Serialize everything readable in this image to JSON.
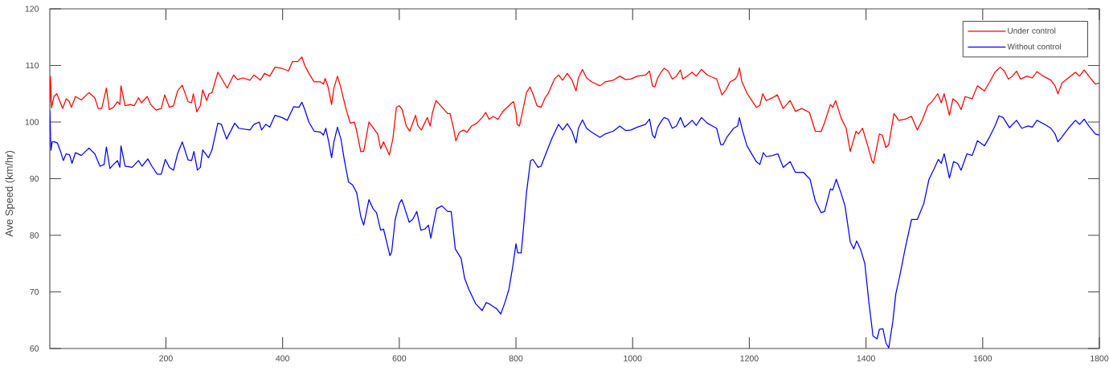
{
  "chart_data": {
    "type": "line",
    "ylabel": "Ave Speed (km/hr)",
    "xlim": [
      1,
      1800
    ],
    "ylim": [
      60,
      120
    ],
    "xticks": [
      200,
      400,
      600,
      800,
      1000,
      1200,
      1400,
      1600,
      1800
    ],
    "yticks": [
      60,
      70,
      80,
      90,
      100,
      110,
      120
    ],
    "legend": "top right",
    "marker": "none",
    "line_style": "solid",
    "series": [
      {
        "name": "Under control",
        "color": "#ff0000",
        "x": [
          1,
          2,
          4,
          8,
          13,
          23,
          29,
          34,
          38,
          45,
          55,
          68,
          78,
          84,
          90,
          98,
          103,
          110,
          117,
          121,
          123,
          130,
          139,
          146,
          153,
          158,
          168,
          174,
          183,
          192,
          198,
          206,
          213,
          220,
          228,
          238,
          244,
          247,
          253,
          259,
          263,
          270,
          274,
          279,
          289,
          295,
          305,
          316,
          323,
          332,
          344,
          351,
          362,
          369,
          378,
          387,
          399,
          410,
          417,
          426,
          433,
          438,
          445,
          454,
          465,
          470,
          473,
          478,
          484,
          488,
          494,
          499,
          509,
          516,
          523,
          527,
          534,
          539,
          548,
          556,
          563,
          568,
          573,
          583,
          589,
          595,
          600,
          605,
          612,
          618,
          628,
          632,
          638,
          648,
          653,
          657,
          663,
          671,
          683,
          687,
          693,
          697,
          703,
          710,
          716,
          724,
          733,
          742,
          748,
          754,
          761,
          769,
          777,
          788,
          793,
          796,
          800,
          802,
          806,
          811,
          818,
          824,
          829,
          836,
          843,
          850,
          855,
          866,
          873,
          880,
          888,
          896,
          903,
          907,
          914,
          921,
          930,
          944,
          953,
          967,
          978,
          988,
          997,
          1008,
          1022,
          1029,
          1034,
          1038,
          1043,
          1050,
          1054,
          1061,
          1068,
          1075,
          1082,
          1086,
          1093,
          1102,
          1109,
          1118,
          1128,
          1137,
          1144,
          1153,
          1160,
          1167,
          1176,
          1180,
          1183,
          1187,
          1196,
          1212,
          1218,
          1223,
          1229,
          1240,
          1248,
          1258,
          1270,
          1279,
          1290,
          1303,
          1313,
          1323,
          1329,
          1339,
          1343,
          1348,
          1357,
          1366,
          1373,
          1383,
          1387,
          1394,
          1403,
          1410,
          1413,
          1423,
          1428,
          1434,
          1439,
          1448,
          1456,
          1467,
          1478,
          1488,
          1497,
          1506,
          1513,
          1523,
          1529,
          1534,
          1543,
          1549,
          1557,
          1563,
          1570,
          1582,
          1591,
          1603,
          1612,
          1621,
          1630,
          1637,
          1644,
          1651,
          1658,
          1665,
          1676,
          1685,
          1693,
          1704,
          1717,
          1724,
          1729,
          1736,
          1747,
          1759,
          1766,
          1774,
          1782,
          1793,
          1800
        ],
        "values": [
          103.5,
          108.1,
          102.5,
          104.5,
          105.0,
          102.4,
          104.1,
          103.7,
          102.6,
          104.5,
          103.9,
          105.2,
          104.3,
          102.4,
          102.4,
          106.0,
          102.2,
          102.6,
          103.6,
          103.1,
          106.4,
          102.9,
          103.1,
          102.9,
          104.3,
          103.4,
          104.5,
          103.1,
          102.1,
          102.4,
          104.8,
          102.6,
          102.9,
          105.5,
          106.5,
          103.6,
          103.4,
          105.0,
          101.8,
          102.9,
          105.7,
          103.8,
          105.0,
          105.2,
          108.8,
          107.8,
          106.0,
          108.3,
          107.5,
          107.8,
          107.4,
          108.3,
          107.4,
          108.6,
          108.1,
          109.7,
          109.5,
          109.0,
          110.7,
          110.7,
          111.5,
          110.0,
          108.6,
          107.1,
          107.1,
          106.7,
          107.7,
          106.2,
          103.1,
          106.0,
          108.1,
          106.4,
          102.2,
          99.8,
          100.0,
          98.4,
          94.8,
          94.8,
          100.0,
          98.9,
          97.9,
          95.3,
          96.5,
          94.2,
          97.0,
          102.6,
          102.9,
          102.2,
          99.3,
          98.4,
          101.2,
          99.3,
          98.6,
          100.8,
          99.3,
          101.7,
          103.8,
          102.9,
          101.5,
          101.5,
          98.9,
          96.7,
          98.2,
          98.6,
          98.2,
          99.3,
          99.8,
          100.8,
          101.7,
          100.5,
          101.0,
          100.5,
          101.8,
          102.9,
          103.4,
          103.6,
          101.7,
          99.6,
          99.3,
          101.7,
          105.2,
          106.2,
          105.0,
          102.9,
          102.6,
          104.3,
          105.0,
          107.6,
          108.3,
          107.4,
          108.6,
          107.4,
          105.5,
          107.8,
          109.3,
          107.8,
          107.1,
          106.4,
          107.1,
          107.4,
          108.1,
          107.5,
          107.6,
          108.1,
          108.3,
          109.0,
          106.4,
          106.2,
          107.8,
          109.0,
          109.5,
          109.0,
          107.6,
          108.1,
          109.2,
          107.6,
          108.1,
          108.8,
          108.1,
          109.3,
          108.3,
          107.9,
          107.6,
          104.8,
          105.7,
          107.1,
          107.6,
          108.3,
          109.6,
          107.2,
          105.1,
          102.6,
          102.9,
          105.0,
          103.8,
          104.3,
          104.8,
          102.4,
          103.8,
          101.9,
          102.4,
          101.7,
          98.4,
          98.3,
          99.9,
          103.1,
          102.6,
          103.8,
          100.8,
          98.9,
          94.8,
          98.4,
          97.9,
          98.9,
          95.8,
          93.2,
          92.7,
          97.9,
          97.7,
          95.5,
          96.0,
          101.5,
          100.3,
          100.5,
          101.0,
          98.6,
          100.5,
          102.9,
          103.6,
          105.0,
          103.4,
          105.0,
          101.2,
          104.1,
          103.4,
          102.2,
          104.5,
          104.1,
          106.4,
          105.5,
          107.1,
          108.8,
          109.7,
          109.0,
          107.6,
          108.1,
          109.0,
          107.6,
          108.1,
          107.8,
          108.9,
          108.1,
          107.4,
          106.4,
          105.0,
          106.9,
          107.8,
          108.8,
          108.1,
          109.2,
          108.1,
          106.7,
          106.9
        ]
      },
      {
        "name": "Without control",
        "color": "#0000ff",
        "x": [
          1,
          3,
          5,
          9,
          14,
          20,
          24,
          29,
          35,
          39,
          45,
          55,
          68,
          78,
          87,
          94,
          98,
          104,
          110,
          117,
          121,
          123,
          130,
          142,
          153,
          159,
          169,
          176,
          185,
          192,
          199,
          206,
          213,
          220,
          228,
          238,
          244,
          248,
          254,
          259,
          263,
          273,
          279,
          289,
          295,
          304,
          318,
          325,
          344,
          351,
          360,
          364,
          371,
          378,
          387,
          399,
          408,
          412,
          419,
          428,
          433,
          438,
          445,
          454,
          465,
          470,
          474,
          479,
          484,
          488,
          494,
          500,
          506,
          513,
          520,
          527,
          534,
          539,
          548,
          555,
          561,
          568,
          573,
          578,
          584,
          587,
          593,
          600,
          604,
          608,
          617,
          623,
          630,
          637,
          644,
          650,
          654,
          657,
          664,
          673,
          683,
          689,
          696,
          706,
          712,
          719,
          731,
          742,
          749,
          754,
          761,
          767,
          774,
          781,
          788,
          795,
          800,
          803,
          809,
          812,
          818,
          825,
          829,
          838,
          843,
          852,
          862,
          873,
          880,
          888,
          896,
          903,
          907,
          914,
          921,
          930,
          944,
          953,
          967,
          978,
          988,
          997,
          1008,
          1022,
          1029,
          1034,
          1038,
          1043,
          1050,
          1054,
          1061,
          1068,
          1075,
          1082,
          1089,
          1095,
          1102,
          1109,
          1118,
          1128,
          1137,
          1144,
          1151,
          1155,
          1162,
          1173,
          1180,
          1183,
          1188,
          1196,
          1212,
          1218,
          1224,
          1229,
          1240,
          1249,
          1258,
          1270,
          1279,
          1293,
          1304,
          1313,
          1323,
          1329,
          1339,
          1343,
          1349,
          1357,
          1364,
          1373,
          1379,
          1384,
          1391,
          1398,
          1405,
          1412,
          1419,
          1423,
          1429,
          1434,
          1439,
          1446,
          1451,
          1458,
          1467,
          1478,
          1488,
          1499,
          1508,
          1517,
          1524,
          1529,
          1534,
          1543,
          1550,
          1557,
          1563,
          1573,
          1582,
          1591,
          1603,
          1612,
          1621,
          1628,
          1635,
          1646,
          1658,
          1667,
          1678,
          1685,
          1693,
          1706,
          1717,
          1724,
          1729,
          1736,
          1747,
          1759,
          1766,
          1774,
          1782,
          1793,
          1800
        ],
        "values": [
          102.0,
          95.0,
          96.5,
          96.5,
          96.3,
          94.6,
          93.2,
          94.4,
          94.2,
          92.7,
          94.6,
          94.1,
          95.4,
          94.4,
          92.2,
          92.5,
          95.6,
          91.8,
          92.5,
          93.2,
          92.0,
          95.8,
          92.2,
          92.0,
          93.2,
          92.2,
          93.5,
          92.2,
          90.8,
          90.8,
          93.4,
          92.0,
          91.5,
          94.4,
          96.5,
          93.3,
          93.2,
          94.8,
          91.5,
          92.0,
          95.1,
          93.7,
          95.1,
          99.8,
          99.6,
          97.0,
          99.8,
          98.9,
          98.6,
          99.6,
          100.0,
          98.6,
          99.6,
          99.1,
          101.2,
          100.8,
          100.3,
          101.2,
          102.7,
          102.6,
          103.5,
          102.2,
          100.0,
          98.4,
          98.2,
          97.7,
          98.9,
          96.5,
          93.7,
          96.5,
          99.1,
          97.0,
          93.2,
          89.4,
          88.9,
          87.5,
          83.3,
          81.8,
          86.3,
          84.7,
          84.0,
          80.9,
          81.1,
          79.0,
          76.4,
          77.1,
          82.8,
          85.6,
          86.3,
          85.2,
          82.3,
          82.8,
          84.2,
          80.9,
          81.1,
          81.8,
          79.5,
          81.1,
          84.7,
          85.2,
          84.2,
          84.2,
          77.6,
          75.9,
          72.4,
          70.5,
          67.9,
          66.7,
          68.1,
          67.9,
          67.4,
          67.0,
          66.1,
          68.1,
          70.5,
          74.8,
          78.5,
          76.9,
          76.9,
          80.2,
          87.5,
          93.2,
          93.4,
          92.0,
          92.2,
          94.6,
          97.2,
          99.6,
          98.6,
          99.7,
          98.4,
          96.3,
          98.9,
          100.4,
          98.9,
          98.2,
          97.3,
          97.9,
          98.4,
          99.3,
          98.5,
          98.6,
          99.1,
          99.6,
          100.5,
          97.7,
          97.2,
          99.1,
          100.3,
          100.8,
          100.5,
          98.9,
          99.3,
          100.8,
          99.1,
          99.6,
          100.3,
          99.4,
          100.8,
          99.8,
          99.3,
          98.9,
          96.0,
          96.0,
          97.4,
          98.9,
          99.3,
          100.8,
          98.6,
          95.8,
          93.0,
          92.5,
          94.6,
          93.9,
          94.1,
          94.4,
          92.0,
          93.0,
          91.1,
          91.1,
          89.9,
          86.1,
          84.0,
          84.2,
          88.2,
          88.0,
          89.9,
          87.5,
          85.2,
          78.8,
          77.6,
          79.0,
          77.4,
          75.0,
          68.1,
          62.2,
          61.7,
          63.4,
          63.5,
          61.0,
          60.1,
          64.8,
          69.6,
          72.9,
          77.6,
          82.8,
          82.8,
          85.6,
          89.9,
          91.8,
          93.4,
          92.7,
          94.4,
          90.1,
          93.0,
          92.7,
          91.5,
          94.4,
          94.1,
          96.7,
          95.8,
          97.4,
          99.3,
          101.1,
          100.8,
          99.0,
          100.3,
          98.9,
          99.3,
          99.1,
          100.3,
          99.6,
          98.9,
          97.9,
          96.5,
          97.4,
          98.9,
          100.3,
          99.6,
          100.5,
          99.3,
          97.9,
          97.7
        ]
      }
    ]
  }
}
